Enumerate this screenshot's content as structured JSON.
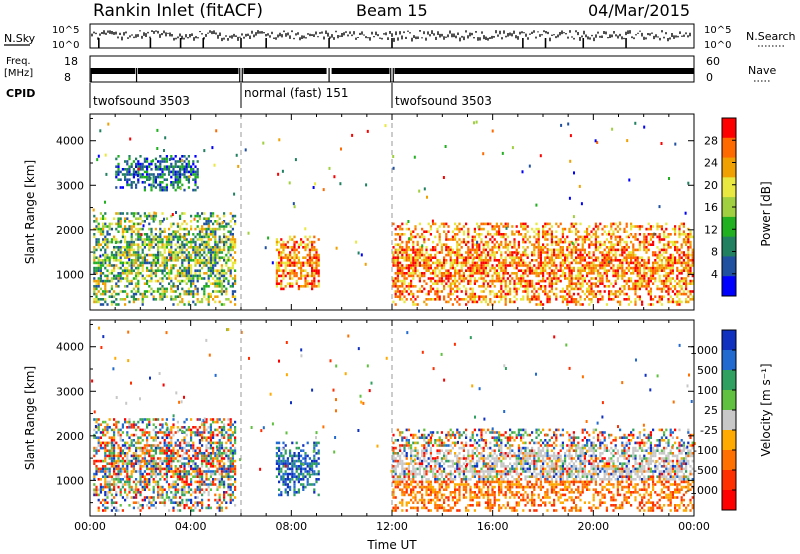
{
  "header": {
    "station": "Rankin Inlet (fitACF)",
    "beam": "Beam 15",
    "date": "04/Mar/2015"
  },
  "aux": {
    "nsky_label": "N.Sky",
    "nsky_ticks": [
      "10^5",
      "10^0"
    ],
    "nsearch_label": "N.Search",
    "nsearch_ticks": [
      "10^5",
      "10^0"
    ],
    "freq_label": [
      "Freq.",
      "[MHz]"
    ],
    "freq_ticks": [
      "18",
      "8"
    ],
    "nave_label": "Nave",
    "nave_ticks": [
      "60",
      "0"
    ],
    "cpid_label": "CPID",
    "cpid_segments": [
      {
        "label": "twofsound 3503",
        "start": 0,
        "end": 6
      },
      {
        "label": "normal (fast) 151",
        "start": 6,
        "end": 12
      },
      {
        "label": "twofsound 3503",
        "start": 12,
        "end": 24
      }
    ]
  },
  "chart_data": [
    {
      "type": "heatmap",
      "name": "Power",
      "ylabel": "Slant Range [km]",
      "yticks": [
        1000,
        2000,
        3000,
        4000
      ],
      "ylim": [
        200,
        4600
      ],
      "xlim": [
        0,
        24
      ],
      "colorbar_label": "Power [dB]",
      "colorbar_ticks": [
        "28",
        "24",
        "20",
        "16",
        "12",
        "8",
        "4"
      ],
      "colorbar_colors": [
        "#ff0000",
        "#ff6a00",
        "#f0a000",
        "#e8e840",
        "#a0d040",
        "#20b020",
        "#208060",
        "#2050a0",
        "#0000ff"
      ],
      "dashed_markers_hours": [
        6,
        12
      ],
      "echo_regions": [
        {
          "t0": 0.1,
          "t1": 5.8,
          "r0": 350,
          "r1": 2450,
          "level": "mid"
        },
        {
          "t0": 1.0,
          "t1": 4.3,
          "r0": 2900,
          "r1": 3700,
          "level": "low"
        },
        {
          "t0": 7.3,
          "t1": 9.1,
          "r0": 700,
          "r1": 1900,
          "level": "high"
        },
        {
          "t0": 12.0,
          "t1": 24.0,
          "r0": 300,
          "r1": 2200,
          "level": "high"
        }
      ]
    },
    {
      "type": "heatmap",
      "name": "Velocity",
      "ylabel": "Slant Range [km]",
      "yticks": [
        1000,
        2000,
        3000,
        4000
      ],
      "ylim": [
        200,
        4600
      ],
      "xlim": [
        0,
        24
      ],
      "xlabel": "Time UT",
      "xticks": [
        "00:00",
        "04:00",
        "08:00",
        "12:00",
        "16:00",
        "20:00",
        "00:00"
      ],
      "colorbar_label": "Velocity [m s⁻¹]",
      "colorbar_ticks": [
        "1000",
        "500",
        "100",
        "25",
        "-25",
        "-100",
        "-500",
        "-1000"
      ],
      "colorbar_colors": [
        "#1030c0",
        "#206ad0",
        "#30a060",
        "#60c040",
        "#c8c8c8",
        "#ffaa00",
        "#ff7000",
        "#ff3000",
        "#ff0000"
      ],
      "dashed_markers_hours": [
        6,
        12
      ],
      "echo_regions": [
        {
          "t0": 0.1,
          "t1": 5.8,
          "r0": 350,
          "r1": 2450,
          "level": "mixed"
        },
        {
          "t0": 7.3,
          "t1": 9.1,
          "r0": 700,
          "r1": 1900,
          "level": "positive"
        },
        {
          "t0": 12.0,
          "t1": 24.0,
          "r0": 300,
          "r1": 2200,
          "level": "mixed"
        }
      ]
    }
  ]
}
